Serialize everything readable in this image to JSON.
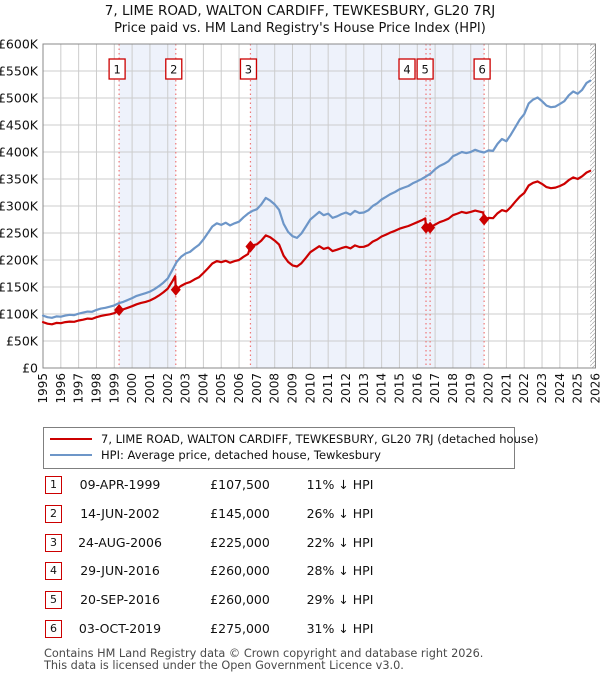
{
  "title": {
    "line1": "7, LIME ROAD, WALTON CARDIFF, TEWKESBURY, GL20 7RJ",
    "line2": "Price paid vs. HM Land Registry's House Price Index (HPI)"
  },
  "colors": {
    "property_line": "#cc0000",
    "hpi_line": "#6d96c8",
    "marker_dash": "#ee7777",
    "ownership_band": "#eef2fb",
    "grid": "#cccccc",
    "plot_border": "#888888",
    "badge_border": "#cc0000",
    "hatch": "#aaaaaa"
  },
  "chart_data": {
    "type": "line",
    "x_axis": {
      "min": 1995,
      "max": 2026,
      "tick_years": [
        1995,
        1996,
        1997,
        1998,
        1999,
        2000,
        2001,
        2002,
        2003,
        2004,
        2005,
        2006,
        2007,
        2008,
        2009,
        2010,
        2011,
        2012,
        2013,
        2014,
        2015,
        2016,
        2017,
        2018,
        2019,
        2020,
        2021,
        2022,
        2023,
        2024,
        2025,
        2026
      ]
    },
    "y_axis": {
      "min": 0,
      "max": 600000,
      "tick_values": [
        0,
        50000,
        100000,
        150000,
        200000,
        250000,
        300000,
        350000,
        400000,
        450000,
        500000,
        550000,
        600000
      ],
      "tick_labels": [
        "£0",
        "£50K",
        "£100K",
        "£150K",
        "£200K",
        "£250K",
        "£300K",
        "£350K",
        "£400K",
        "£450K",
        "£500K",
        "£550K",
        "£600K"
      ]
    },
    "grid": true,
    "ownership_bands": [
      [
        1999.27,
        2002.45
      ],
      [
        2006.64,
        2019.75
      ]
    ],
    "future_hatch_start": 2025.7,
    "sale_markers": [
      {
        "label": "1",
        "year": 1999.27,
        "price": 107500
      },
      {
        "label": "2",
        "year": 2002.45,
        "price": 145000
      },
      {
        "label": "3",
        "year": 2006.64,
        "price": 225000
      },
      {
        "label": "4",
        "year": 2016.49,
        "price": 260000
      },
      {
        "label": "5",
        "year": 2016.72,
        "price": 260000
      },
      {
        "label": "6",
        "year": 2019.75,
        "price": 275000
      }
    ],
    "series": [
      {
        "name": "HPI: Average price, detached house, Tewkesbury",
        "color": "#6d96c8",
        "points": [
          [
            1995.0,
            97000
          ],
          [
            1995.25,
            94000
          ],
          [
            1995.5,
            93000
          ],
          [
            1995.75,
            95500
          ],
          [
            1996.0,
            95000
          ],
          [
            1996.25,
            97000
          ],
          [
            1996.5,
            98500
          ],
          [
            1996.75,
            98000
          ],
          [
            1997.0,
            100500
          ],
          [
            1997.25,
            102500
          ],
          [
            1997.5,
            104500
          ],
          [
            1997.75,
            104000
          ],
          [
            1998.0,
            107500
          ],
          [
            1998.25,
            110000
          ],
          [
            1998.5,
            111500
          ],
          [
            1998.75,
            113500
          ],
          [
            1999.0,
            116000
          ],
          [
            1999.25,
            120000
          ],
          [
            1999.5,
            122500
          ],
          [
            1999.75,
            126000
          ],
          [
            2000.0,
            129500
          ],
          [
            2000.25,
            133500
          ],
          [
            2000.5,
            136000
          ],
          [
            2000.75,
            138500
          ],
          [
            2001.0,
            141500
          ],
          [
            2001.25,
            146000
          ],
          [
            2001.5,
            151500
          ],
          [
            2001.75,
            158000
          ],
          [
            2002.0,
            166000
          ],
          [
            2002.25,
            181000
          ],
          [
            2002.5,
            196500
          ],
          [
            2002.75,
            206000
          ],
          [
            2003.0,
            212000
          ],
          [
            2003.25,
            215000
          ],
          [
            2003.5,
            222000
          ],
          [
            2003.75,
            228000
          ],
          [
            2004.0,
            238000
          ],
          [
            2004.25,
            250000
          ],
          [
            2004.5,
            262000
          ],
          [
            2004.75,
            268000
          ],
          [
            2005.0,
            265000
          ],
          [
            2005.25,
            269000
          ],
          [
            2005.5,
            264000
          ],
          [
            2005.75,
            268000
          ],
          [
            2006.0,
            271000
          ],
          [
            2006.25,
            279000
          ],
          [
            2006.5,
            286000
          ],
          [
            2006.75,
            291000
          ],
          [
            2007.0,
            294000
          ],
          [
            2007.25,
            303000
          ],
          [
            2007.5,
            315000
          ],
          [
            2007.75,
            310000
          ],
          [
            2008.0,
            303000
          ],
          [
            2008.25,
            293000
          ],
          [
            2008.5,
            267000
          ],
          [
            2008.75,
            252000
          ],
          [
            2009.0,
            244000
          ],
          [
            2009.25,
            241000
          ],
          [
            2009.5,
            249000
          ],
          [
            2009.75,
            262000
          ],
          [
            2010.0,
            275000
          ],
          [
            2010.25,
            282000
          ],
          [
            2010.5,
            289000
          ],
          [
            2010.75,
            283000
          ],
          [
            2011.0,
            286000
          ],
          [
            2011.25,
            278000
          ],
          [
            2011.5,
            281000
          ],
          [
            2011.75,
            285000
          ],
          [
            2012.0,
            288000
          ],
          [
            2012.25,
            284000
          ],
          [
            2012.5,
            291000
          ],
          [
            2012.75,
            287000
          ],
          [
            2013.0,
            288000
          ],
          [
            2013.25,
            292000
          ],
          [
            2013.5,
            300000
          ],
          [
            2013.75,
            305000
          ],
          [
            2014.0,
            312000
          ],
          [
            2014.25,
            317000
          ],
          [
            2014.5,
            322000
          ],
          [
            2014.75,
            326000
          ],
          [
            2015.0,
            331000
          ],
          [
            2015.25,
            334000
          ],
          [
            2015.5,
            337000
          ],
          [
            2015.75,
            342000
          ],
          [
            2016.0,
            346000
          ],
          [
            2016.25,
            350000
          ],
          [
            2016.5,
            355000
          ],
          [
            2016.75,
            360000
          ],
          [
            2017.0,
            368000
          ],
          [
            2017.25,
            374000
          ],
          [
            2017.5,
            378000
          ],
          [
            2017.75,
            383000
          ],
          [
            2018.0,
            392000
          ],
          [
            2018.25,
            396000
          ],
          [
            2018.5,
            400000
          ],
          [
            2018.75,
            398000
          ],
          [
            2019.0,
            400000
          ],
          [
            2019.25,
            404000
          ],
          [
            2019.5,
            401000
          ],
          [
            2019.75,
            399000
          ],
          [
            2020.0,
            403000
          ],
          [
            2020.25,
            402000
          ],
          [
            2020.5,
            415000
          ],
          [
            2020.75,
            424000
          ],
          [
            2021.0,
            420000
          ],
          [
            2021.25,
            432000
          ],
          [
            2021.5,
            446000
          ],
          [
            2021.75,
            460000
          ],
          [
            2022.0,
            470000
          ],
          [
            2022.25,
            490000
          ],
          [
            2022.5,
            497000
          ],
          [
            2022.75,
            501000
          ],
          [
            2023.0,
            494000
          ],
          [
            2023.25,
            486000
          ],
          [
            2023.5,
            483000
          ],
          [
            2023.75,
            484000
          ],
          [
            2024.0,
            489000
          ],
          [
            2024.25,
            494000
          ],
          [
            2024.5,
            505000
          ],
          [
            2024.75,
            512000
          ],
          [
            2025.0,
            508000
          ],
          [
            2025.25,
            515000
          ],
          [
            2025.5,
            528000
          ],
          [
            2025.7,
            532000
          ]
        ]
      },
      {
        "name": "7, LIME ROAD, WALTON CARDIFF, TEWKESBURY, GL20 7RJ (detached house)",
        "color": "#cc0000",
        "points": [
          [
            1995.0,
            85000
          ],
          [
            1995.25,
            82000
          ],
          [
            1995.5,
            81000
          ],
          [
            1995.75,
            83500
          ],
          [
            1996.0,
            83000
          ],
          [
            1996.25,
            85000
          ],
          [
            1996.5,
            86000
          ],
          [
            1996.75,
            85500
          ],
          [
            1997.0,
            88000
          ],
          [
            1997.25,
            89500
          ],
          [
            1997.5,
            91500
          ],
          [
            1997.75,
            91000
          ],
          [
            1998.0,
            94000
          ],
          [
            1998.25,
            96500
          ],
          [
            1998.5,
            98000
          ],
          [
            1998.75,
            99500
          ],
          [
            1999.0,
            101500
          ],
          [
            1999.27,
            107500
          ],
          [
            1999.5,
            108500
          ],
          [
            1999.75,
            111500
          ],
          [
            2000.0,
            114500
          ],
          [
            2000.25,
            118000
          ],
          [
            2000.5,
            120500
          ],
          [
            2000.75,
            122500
          ],
          [
            2001.0,
            125000
          ],
          [
            2001.25,
            129000
          ],
          [
            2001.5,
            134000
          ],
          [
            2001.75,
            140000
          ],
          [
            2002.0,
            147000
          ],
          [
            2002.25,
            160000
          ],
          [
            2002.42,
            170000
          ],
          [
            2002.45,
            145000
          ],
          [
            2002.75,
            152000
          ],
          [
            2003.0,
            156500
          ],
          [
            2003.25,
            159000
          ],
          [
            2003.5,
            164000
          ],
          [
            2003.75,
            168000
          ],
          [
            2004.0,
            176000
          ],
          [
            2004.25,
            184500
          ],
          [
            2004.5,
            193500
          ],
          [
            2004.75,
            198000
          ],
          [
            2005.0,
            196000
          ],
          [
            2005.25,
            198500
          ],
          [
            2005.5,
            195000
          ],
          [
            2005.75,
            198000
          ],
          [
            2006.0,
            200000
          ],
          [
            2006.25,
            206000
          ],
          [
            2006.5,
            211000
          ],
          [
            2006.64,
            225000
          ],
          [
            2006.75,
            227000
          ],
          [
            2007.0,
            229000
          ],
          [
            2007.25,
            236000
          ],
          [
            2007.5,
            245500
          ],
          [
            2007.75,
            242000
          ],
          [
            2008.0,
            236000
          ],
          [
            2008.25,
            228500
          ],
          [
            2008.5,
            208000
          ],
          [
            2008.75,
            196500
          ],
          [
            2009.0,
            190000
          ],
          [
            2009.25,
            188000
          ],
          [
            2009.5,
            194000
          ],
          [
            2009.75,
            204000
          ],
          [
            2010.0,
            214500
          ],
          [
            2010.25,
            220000
          ],
          [
            2010.5,
            225500
          ],
          [
            2010.75,
            220500
          ],
          [
            2011.0,
            223000
          ],
          [
            2011.25,
            216500
          ],
          [
            2011.5,
            219000
          ],
          [
            2011.75,
            222000
          ],
          [
            2012.0,
            224500
          ],
          [
            2012.25,
            221500
          ],
          [
            2012.5,
            227000
          ],
          [
            2012.75,
            224000
          ],
          [
            2013.0,
            224500
          ],
          [
            2013.25,
            227500
          ],
          [
            2013.5,
            234000
          ],
          [
            2013.75,
            238000
          ],
          [
            2014.0,
            243500
          ],
          [
            2014.25,
            247000
          ],
          [
            2014.5,
            251000
          ],
          [
            2014.75,
            254000
          ],
          [
            2015.0,
            258000
          ],
          [
            2015.25,
            260500
          ],
          [
            2015.5,
            263000
          ],
          [
            2015.75,
            266500
          ],
          [
            2016.0,
            270000
          ],
          [
            2016.25,
            273500
          ],
          [
            2016.45,
            277000
          ],
          [
            2016.49,
            260000
          ],
          [
            2016.72,
            260000
          ],
          [
            2017.0,
            265500
          ],
          [
            2017.25,
            270000
          ],
          [
            2017.5,
            273000
          ],
          [
            2017.75,
            276500
          ],
          [
            2018.0,
            283000
          ],
          [
            2018.25,
            286000
          ],
          [
            2018.5,
            289000
          ],
          [
            2018.75,
            287000
          ],
          [
            2019.0,
            289000
          ],
          [
            2019.25,
            291500
          ],
          [
            2019.5,
            289500
          ],
          [
            2019.7,
            288000
          ],
          [
            2019.75,
            275000
          ],
          [
            2020.0,
            278000
          ],
          [
            2020.25,
            277500
          ],
          [
            2020.5,
            286500
          ],
          [
            2020.75,
            292500
          ],
          [
            2021.0,
            290000
          ],
          [
            2021.25,
            298000
          ],
          [
            2021.5,
            308000
          ],
          [
            2021.75,
            317500
          ],
          [
            2022.0,
            324000
          ],
          [
            2022.25,
            338000
          ],
          [
            2022.5,
            343000
          ],
          [
            2022.75,
            345500
          ],
          [
            2023.0,
            341000
          ],
          [
            2023.25,
            335000
          ],
          [
            2023.5,
            333000
          ],
          [
            2023.75,
            334000
          ],
          [
            2024.0,
            337000
          ],
          [
            2024.25,
            341000
          ],
          [
            2024.5,
            348000
          ],
          [
            2024.75,
            353000
          ],
          [
            2025.0,
            350000
          ],
          [
            2025.25,
            355000
          ],
          [
            2025.5,
            362000
          ],
          [
            2025.7,
            365000
          ]
        ]
      }
    ],
    "legend_position": "below"
  },
  "legend": {
    "property": "7, LIME ROAD, WALTON CARDIFF, TEWKESBURY, GL20 7RJ (detached house)",
    "hpi": "HPI: Average price, detached house, Tewkesbury"
  },
  "transactions": [
    {
      "num": "1",
      "date": "09-APR-1999",
      "price": "£107,500",
      "hpi_delta": "11% ↓ HPI"
    },
    {
      "num": "2",
      "date": "14-JUN-2002",
      "price": "£145,000",
      "hpi_delta": "26% ↓ HPI"
    },
    {
      "num": "3",
      "date": "24-AUG-2006",
      "price": "£225,000",
      "hpi_delta": "22% ↓ HPI"
    },
    {
      "num": "4",
      "date": "29-JUN-2016",
      "price": "£260,000",
      "hpi_delta": "28% ↓ HPI"
    },
    {
      "num": "5",
      "date": "20-SEP-2016",
      "price": "£260,000",
      "hpi_delta": "29% ↓ HPI"
    },
    {
      "num": "6",
      "date": "03-OCT-2019",
      "price": "£275,000",
      "hpi_delta": "31% ↓ HPI"
    }
  ],
  "footer": {
    "line1": "Contains HM Land Registry data © Crown copyright and database right 2026.",
    "line2": "This data is licensed under the Open Government Licence v3.0."
  }
}
